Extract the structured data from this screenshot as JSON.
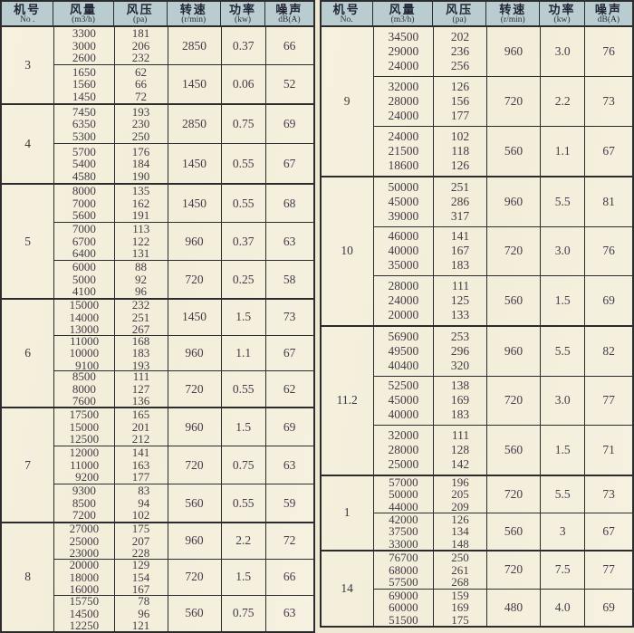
{
  "page": {
    "background": "#efe9d3",
    "header_bg": "#b9cccf",
    "table_bg": "#f4efdb",
    "border_color": "#2c2b2e",
    "text_color": "#453a48"
  },
  "tables": [
    {
      "id": "left",
      "columns": [
        {
          "title": "机号",
          "unit": "No ."
        },
        {
          "title": "风量",
          "unit": "(m3/h)"
        },
        {
          "title": "风压",
          "unit": "(pa)"
        },
        {
          "title": "转速",
          "unit": "(r/min)"
        },
        {
          "title": "功率",
          "unit": "(kw)"
        },
        {
          "title": "噪声",
          "unit": "dB(A)"
        }
      ],
      "groups": [
        {
          "no": "3",
          "rows": [
            {
              "flow": [
                "3300",
                "3000",
                "2600"
              ],
              "pressure": [
                "181",
                "206",
                "232"
              ],
              "speed": "2850",
              "power": "0.37",
              "noise": "66"
            },
            {
              "flow": [
                "1650",
                "1560",
                "1450"
              ],
              "pressure": [
                "62",
                "66",
                "72"
              ],
              "speed": "1450",
              "power": "0.06",
              "noise": "52"
            }
          ]
        },
        {
          "no": "4",
          "rows": [
            {
              "flow": [
                "7450",
                "6350",
                "5300"
              ],
              "pressure": [
                "193",
                "230",
                "250"
              ],
              "speed": "2850",
              "power": "0.75",
              "noise": "69"
            },
            {
              "flow": [
                "5700",
                "5400",
                "4580"
              ],
              "pressure": [
                "176",
                "184",
                "190"
              ],
              "speed": "1450",
              "power": "0.55",
              "noise": "67"
            }
          ]
        },
        {
          "no": "5",
          "rows": [
            {
              "flow": [
                "8000",
                "7000",
                "5600"
              ],
              "pressure": [
                "135",
                "162",
                "191"
              ],
              "speed": "1450",
              "power": "0.55",
              "noise": "68"
            },
            {
              "flow": [
                "7000",
                "6700",
                "6400"
              ],
              "pressure": [
                "113",
                "122",
                "131"
              ],
              "speed": "960",
              "power": "0.37",
              "noise": "63"
            },
            {
              "flow": [
                "6000",
                "5000",
                "4100"
              ],
              "pressure": [
                "88",
                "92",
                "96"
              ],
              "speed": "720",
              "power": "0.25",
              "noise": "58"
            }
          ]
        },
        {
          "no": "6",
          "rows": [
            {
              "flow": [
                "15000",
                "14000",
                "13000"
              ],
              "pressure": [
                "232",
                "251",
                "267"
              ],
              "speed": "1450",
              "power": "1.5",
              "noise": "73"
            },
            {
              "flow": [
                "11000",
                "10000",
                "9100"
              ],
              "pressure": [
                "168",
                "183",
                "193"
              ],
              "speed": "960",
              "power": "1.1",
              "noise": "67"
            },
            {
              "flow": [
                "8500",
                "8000",
                "7600"
              ],
              "pressure": [
                "111",
                "127",
                "136"
              ],
              "speed": "720",
              "power": "0.55",
              "noise": "62"
            }
          ]
        },
        {
          "no": "7",
          "rows": [
            {
              "flow": [
                "17500",
                "15000",
                "12500"
              ],
              "pressure": [
                "165",
                "201",
                "212"
              ],
              "speed": "960",
              "power": "1.5",
              "noise": "69"
            },
            {
              "flow": [
                "12000",
                "11000",
                "9200"
              ],
              "pressure": [
                "141",
                "163",
                "177"
              ],
              "speed": "720",
              "power": "0.75",
              "noise": "63"
            },
            {
              "flow": [
                "9300",
                "8500",
                "7200"
              ],
              "pressure": [
                "83",
                "94",
                "102"
              ],
              "speed": "560",
              "power": "0.55",
              "noise": "59"
            }
          ]
        },
        {
          "no": "8",
          "rows": [
            {
              "flow": [
                "27000",
                "25000",
                "23000"
              ],
              "pressure": [
                "175",
                "207",
                "228"
              ],
              "speed": "960",
              "power": "2.2",
              "noise": "72"
            },
            {
              "flow": [
                "20000",
                "18000",
                "16000"
              ],
              "pressure": [
                "129",
                "154",
                "167"
              ],
              "speed": "720",
              "power": "1.5",
              "noise": "66"
            },
            {
              "flow": [
                "15750",
                "14500",
                "12250"
              ],
              "pressure": [
                "78",
                "96",
                "121"
              ],
              "speed": "560",
              "power": "0.75",
              "noise": "63"
            }
          ]
        }
      ]
    },
    {
      "id": "right",
      "columns": [
        {
          "title": "机号",
          "unit": "No."
        },
        {
          "title": "风量",
          "unit": "(m3/h)"
        },
        {
          "title": "风压",
          "unit": "(pa)"
        },
        {
          "title": "转速",
          "unit": "(r/min)"
        },
        {
          "title": "功率",
          "unit": "(kw)"
        },
        {
          "title": "噪声",
          "unit": "dB(A)"
        }
      ],
      "groups": [
        {
          "no": "9",
          "rows": [
            {
              "flow": [
                "34500",
                "29000",
                "24000"
              ],
              "pressure": [
                "202",
                "236",
                "256"
              ],
              "speed": "960",
              "power": "3.0",
              "noise": "76"
            },
            {
              "flow": [
                "32000",
                "28000",
                "24000"
              ],
              "pressure": [
                "126",
                "156",
                "177"
              ],
              "speed": "720",
              "power": "2.2",
              "noise": "73"
            },
            {
              "flow": [
                "24000",
                "21500",
                "18600"
              ],
              "pressure": [
                "102",
                "118",
                "126"
              ],
              "speed": "560",
              "power": "1.1",
              "noise": "67"
            }
          ]
        },
        {
          "no": "10",
          "rows": [
            {
              "flow": [
                "50000",
                "45000",
                "39000"
              ],
              "pressure": [
                "251",
                "286",
                "317"
              ],
              "speed": "960",
              "power": "5.5",
              "noise": "81"
            },
            {
              "flow": [
                "46000",
                "40000",
                "35000"
              ],
              "pressure": [
                "141",
                "167",
                "183"
              ],
              "speed": "720",
              "power": "3.0",
              "noise": "76"
            },
            {
              "flow": [
                "28000",
                "24000",
                "20000"
              ],
              "pressure": [
                "111",
                "125",
                "133"
              ],
              "speed": "560",
              "power": "1.5",
              "noise": "69"
            }
          ]
        },
        {
          "no": "11.2",
          "rows": [
            {
              "flow": [
                "56900",
                "49500",
                "40400"
              ],
              "pressure": [
                "253",
                "296",
                "320"
              ],
              "speed": "960",
              "power": "5.5",
              "noise": "82"
            },
            {
              "flow": [
                "52500",
                "45000",
                "40000"
              ],
              "pressure": [
                "138",
                "169",
                "183"
              ],
              "speed": "720",
              "power": "3.0",
              "noise": "77"
            },
            {
              "flow": [
                "32000",
                "28000",
                "25000"
              ],
              "pressure": [
                "111",
                "128",
                "142"
              ],
              "speed": "560",
              "power": "1.5",
              "noise": "71"
            }
          ]
        },
        {
          "no": "1",
          "rows": [
            {
              "flow": [
                "57000",
                "50000",
                "44000"
              ],
              "pressure": [
                "196",
                "205",
                "209"
              ],
              "speed": "720",
              "power": "5.5",
              "noise": "73"
            },
            {
              "flow": [
                "42000",
                "37500",
                "33000"
              ],
              "pressure": [
                "126",
                "134",
                "148"
              ],
              "speed": "560",
              "power": "3",
              "noise": "67"
            }
          ]
        },
        {
          "no": "14",
          "rows": [
            {
              "flow": [
                "76700",
                "68000",
                "57500"
              ],
              "pressure": [
                "250",
                "261",
                "268"
              ],
              "speed": "720",
              "power": "7.5",
              "noise": "77"
            },
            {
              "flow": [
                "69000",
                "60000",
                "51500"
              ],
              "pressure": [
                "159",
                "169",
                "175"
              ],
              "speed": "480",
              "power": "4.0",
              "noise": "69"
            }
          ]
        }
      ]
    }
  ]
}
